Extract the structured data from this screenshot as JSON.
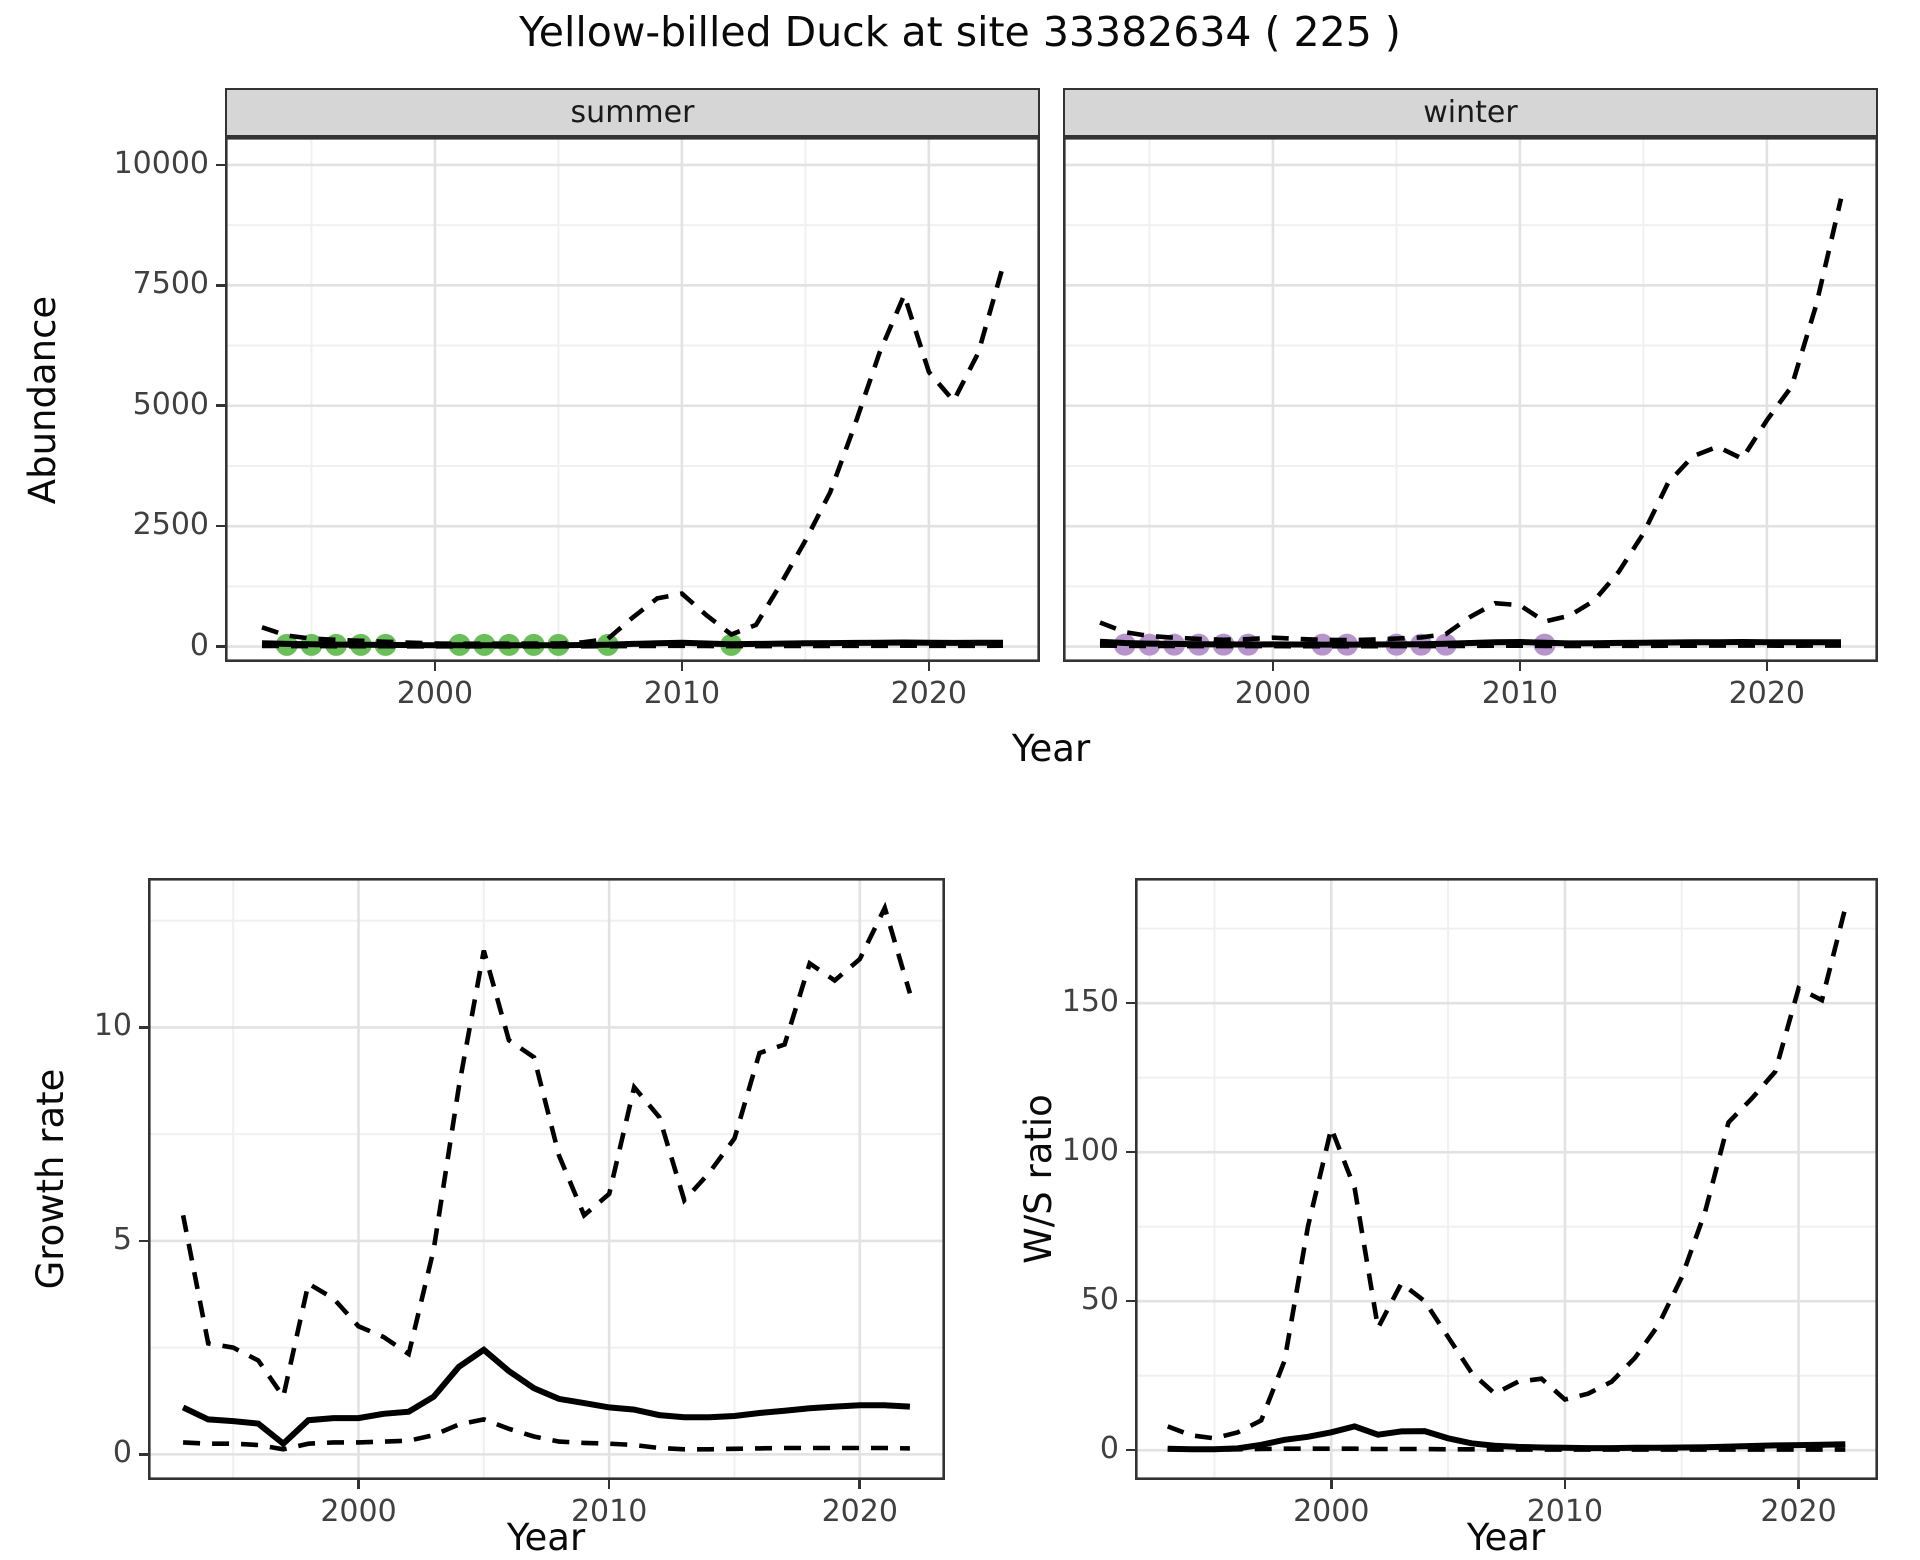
{
  "title": "Yellow-billed Duck at site 33382634 ( 225 )",
  "style": {
    "summer_point_color": "#6abf5a",
    "winter_point_color": "#b795cc",
    "line_color": "#000000",
    "strip_bg": "#d6d6d6",
    "grid_major": "#e2e2e2",
    "grid_minor": "#f0f0f0"
  },
  "abundance": {
    "ylabel": "Abundance",
    "xlabel": "Year",
    "yticks": [
      0,
      2500,
      5000,
      7500,
      10000
    ],
    "yminor": [
      1250,
      3750,
      6250,
      8750
    ],
    "xticks": [
      2000,
      2010,
      2020
    ],
    "xminor": [
      1995,
      2005,
      2015
    ],
    "years": [
      1993,
      1994,
      1995,
      1996,
      1997,
      1998,
      1999,
      2000,
      2001,
      2002,
      2003,
      2004,
      2005,
      2006,
      2007,
      2008,
      2009,
      2010,
      2011,
      2012,
      2013,
      2014,
      2015,
      2016,
      2017,
      2018,
      2019,
      2020,
      2021,
      2022,
      2023
    ],
    "facets": [
      {
        "label": "summer",
        "upper": [
          400,
          230,
          165,
          140,
          120,
          100,
          80,
          65,
          58,
          60,
          60,
          62,
          65,
          90,
          160,
          600,
          1000,
          1100,
          650,
          250,
          450,
          1300,
          2200,
          3200,
          4600,
          6100,
          7300,
          5700,
          5100,
          6100,
          7900
        ],
        "median": [
          70,
          55,
          48,
          42,
          38,
          34,
          30,
          28,
          26,
          26,
          26,
          27,
          28,
          32,
          40,
          55,
          70,
          78,
          65,
          50,
          55,
          62,
          68,
          72,
          76,
          80,
          84,
          80,
          76,
          78,
          80
        ],
        "lower": [
          15,
          12,
          10,
          9,
          8,
          8,
          7,
          7,
          6,
          6,
          6,
          6,
          7,
          7,
          9,
          12,
          15,
          16,
          13,
          10,
          11,
          13,
          14,
          15,
          16,
          17,
          18,
          17,
          16,
          17,
          18
        ],
        "points": {
          "years": [
            1994,
            1995,
            1996,
            1997,
            1998,
            2001,
            2002,
            2003,
            2004,
            2005,
            2007,
            2012
          ],
          "values": [
            35,
            35,
            35,
            35,
            35,
            35,
            35,
            35,
            35,
            35,
            35,
            35
          ]
        }
      },
      {
        "label": "winter",
        "upper": [
          500,
          300,
          220,
          185,
          160,
          140,
          155,
          185,
          160,
          140,
          135,
          145,
          165,
          190,
          260,
          620,
          900,
          860,
          520,
          640,
          950,
          1550,
          2350,
          3400,
          3950,
          4150,
          3900,
          4700,
          5400,
          7100,
          9300
        ],
        "median": [
          100,
          75,
          62,
          55,
          50,
          46,
          44,
          46,
          44,
          42,
          42,
          43,
          45,
          50,
          58,
          75,
          90,
          95,
          78,
          66,
          70,
          76,
          80,
          84,
          88,
          92,
          95,
          92,
          88,
          90,
          92
        ],
        "lower": [
          20,
          16,
          13,
          12,
          11,
          10,
          10,
          10,
          9,
          9,
          9,
          9,
          10,
          10,
          12,
          15,
          18,
          19,
          15,
          13,
          14,
          16,
          17,
          18,
          19,
          20,
          21,
          20,
          19,
          20,
          21
        ],
        "points": {
          "years": [
            1994,
            1995,
            1996,
            1997,
            1998,
            1999,
            2002,
            2003,
            2005,
            2006,
            2007,
            2011
          ],
          "values": [
            40,
            40,
            40,
            40,
            40,
            40,
            40,
            40,
            40,
            40,
            40,
            40
          ]
        }
      }
    ]
  },
  "growth": {
    "ylabel": "Growth rate",
    "xlabel": "Year",
    "yticks": [
      0,
      5,
      10
    ],
    "yminor": [
      2.5,
      7.5,
      12.5
    ],
    "xticks": [
      2000,
      2010,
      2020
    ],
    "xminor": [
      1995,
      2005,
      2015
    ],
    "years": [
      1993,
      1994,
      1995,
      1996,
      1997,
      1998,
      1999,
      2000,
      2001,
      2002,
      2003,
      2004,
      2005,
      2006,
      2007,
      2008,
      2009,
      2010,
      2011,
      2012,
      2013,
      2014,
      2015,
      2016,
      2017,
      2018,
      2019,
      2020,
      2021,
      2022
    ],
    "upper": [
      5.6,
      2.6,
      2.5,
      2.2,
      1.35,
      4.0,
      3.65,
      3.0,
      2.75,
      2.35,
      4.8,
      8.6,
      11.8,
      9.7,
      9.3,
      7.0,
      5.6,
      6.1,
      8.6,
      7.9,
      5.95,
      6.6,
      7.4,
      9.4,
      9.6,
      11.5,
      11.1,
      11.6,
      12.8,
      10.8
    ],
    "median": [
      1.1,
      0.82,
      0.78,
      0.72,
      0.25,
      0.8,
      0.85,
      0.85,
      0.95,
      1.0,
      1.35,
      2.05,
      2.45,
      1.95,
      1.55,
      1.3,
      1.2,
      1.1,
      1.05,
      0.92,
      0.87,
      0.87,
      0.9,
      0.97,
      1.02,
      1.08,
      1.12,
      1.15,
      1.15,
      1.12
    ],
    "lower": [
      0.28,
      0.25,
      0.25,
      0.22,
      0.12,
      0.25,
      0.28,
      0.28,
      0.3,
      0.32,
      0.45,
      0.7,
      0.82,
      0.6,
      0.42,
      0.3,
      0.27,
      0.25,
      0.22,
      0.15,
      0.12,
      0.12,
      0.13,
      0.14,
      0.15,
      0.15,
      0.15,
      0.15,
      0.15,
      0.14
    ]
  },
  "ws": {
    "ylabel": "W/S ratio",
    "xlabel": "Year",
    "yticks": [
      0,
      50,
      100,
      150
    ],
    "yminor": [
      25,
      75,
      125,
      175
    ],
    "xticks": [
      2000,
      2010,
      2020
    ],
    "xminor": [
      1995,
      2005,
      2015
    ],
    "years": [
      1993,
      1994,
      1995,
      1996,
      1997,
      1998,
      1999,
      2000,
      2001,
      2002,
      2003,
      2004,
      2005,
      2006,
      2007,
      2008,
      2009,
      2010,
      2011,
      2012,
      2013,
      2014,
      2015,
      2016,
      2017,
      2018,
      2019,
      2020,
      2021,
      2022
    ],
    "upper": [
      8,
      5,
      4,
      6,
      10,
      30,
      75,
      108,
      88,
      41,
      56,
      50,
      38,
      26,
      19,
      23,
      24,
      17,
      19,
      23,
      31,
      42,
      58,
      80,
      110,
      118,
      127,
      155,
      151,
      182
    ],
    "median": [
      0.5,
      0.3,
      0.3,
      0.6,
      1.8,
      3.5,
      4.5,
      6.0,
      8.0,
      5.2,
      6.3,
      6.4,
      4.0,
      2.3,
      1.5,
      1.1,
      0.9,
      0.8,
      0.7,
      0.7,
      0.8,
      0.8,
      0.9,
      1.0,
      1.2,
      1.4,
      1.6,
      1.7,
      1.8,
      2.0
    ],
    "lower": [
      0.3,
      0.2,
      0.2,
      0.3,
      0.4,
      0.5,
      0.5,
      0.5,
      0.5,
      0.4,
      0.4,
      0.4,
      0.3,
      0.3,
      0.2,
      0.2,
      0.2,
      0.2,
      0.2,
      0.2,
      0.2,
      0.2,
      0.2,
      0.2,
      0.2,
      0.2,
      0.2,
      0.2,
      0.2,
      0.2
    ],
    "chart_note": ""
  },
  "chart_data": [
    {
      "type": "line",
      "title": "Abundance by season (dashed = credible interval bounds, solid = median, dots = observations)",
      "facets": [
        "summer",
        "winter"
      ],
      "xlabel": "Year",
      "ylabel": "Abundance",
      "xlim": [
        1991.5,
        2024.5
      ],
      "ylim": [
        0,
        10000
      ],
      "x": [
        1993,
        1994,
        1995,
        1996,
        1997,
        1998,
        1999,
        2000,
        2001,
        2002,
        2003,
        2004,
        2005,
        2006,
        2007,
        2008,
        2009,
        2010,
        2011,
        2012,
        2013,
        2014,
        2015,
        2016,
        2017,
        2018,
        2019,
        2020,
        2021,
        2022,
        2023
      ],
      "series": [
        {
          "name": "summer upper CI",
          "values": [
            400,
            230,
            165,
            140,
            120,
            100,
            80,
            65,
            58,
            60,
            60,
            62,
            65,
            90,
            160,
            600,
            1000,
            1100,
            650,
            250,
            450,
            1300,
            2200,
            3200,
            4600,
            6100,
            7300,
            5700,
            5100,
            6100,
            7900
          ]
        },
        {
          "name": "summer median",
          "values": [
            70,
            55,
            48,
            42,
            38,
            34,
            30,
            28,
            26,
            26,
            26,
            27,
            28,
            32,
            40,
            55,
            70,
            78,
            65,
            50,
            55,
            62,
            68,
            72,
            76,
            80,
            84,
            80,
            76,
            78,
            80
          ]
        },
        {
          "name": "winter upper CI",
          "values": [
            500,
            300,
            220,
            185,
            160,
            140,
            155,
            185,
            160,
            140,
            135,
            145,
            165,
            190,
            260,
            620,
            900,
            860,
            520,
            640,
            950,
            1550,
            2350,
            3400,
            3950,
            4150,
            3900,
            4700,
            5400,
            7100,
            9300
          ]
        },
        {
          "name": "winter median",
          "values": [
            100,
            75,
            62,
            55,
            50,
            46,
            44,
            46,
            44,
            42,
            42,
            43,
            45,
            50,
            58,
            75,
            90,
            95,
            78,
            66,
            70,
            76,
            80,
            84,
            88,
            92,
            95,
            92,
            88,
            90,
            92
          ]
        }
      ],
      "point_years_summer": [
        1994,
        1995,
        1996,
        1997,
        1998,
        2001,
        2002,
        2003,
        2004,
        2005,
        2007,
        2012
      ],
      "point_years_winter": [
        1994,
        1995,
        1996,
        1997,
        1998,
        1999,
        2002,
        2003,
        2005,
        2006,
        2007,
        2011
      ]
    },
    {
      "type": "line",
      "title": "Growth rate",
      "xlabel": "Year",
      "ylabel": "Growth rate",
      "ylim": [
        0,
        13
      ],
      "x": [
        1993,
        1994,
        1995,
        1996,
        1997,
        1998,
        1999,
        2000,
        2001,
        2002,
        2003,
        2004,
        2005,
        2006,
        2007,
        2008,
        2009,
        2010,
        2011,
        2012,
        2013,
        2014,
        2015,
        2016,
        2017,
        2018,
        2019,
        2020,
        2021,
        2022
      ],
      "series": [
        {
          "name": "upper CI",
          "values": [
            5.6,
            2.6,
            2.5,
            2.2,
            1.35,
            4.0,
            3.65,
            3.0,
            2.75,
            2.35,
            4.8,
            8.6,
            11.8,
            9.7,
            9.3,
            7.0,
            5.6,
            6.1,
            8.6,
            7.9,
            5.95,
            6.6,
            7.4,
            9.4,
            9.6,
            11.5,
            11.1,
            11.6,
            12.8,
            10.8
          ]
        },
        {
          "name": "median",
          "values": [
            1.1,
            0.82,
            0.78,
            0.72,
            0.25,
            0.8,
            0.85,
            0.85,
            0.95,
            1.0,
            1.35,
            2.05,
            2.45,
            1.95,
            1.55,
            1.3,
            1.2,
            1.1,
            1.05,
            0.92,
            0.87,
            0.87,
            0.9,
            0.97,
            1.02,
            1.08,
            1.12,
            1.15,
            1.15,
            1.12
          ]
        },
        {
          "name": "lower CI",
          "values": [
            0.28,
            0.25,
            0.25,
            0.22,
            0.12,
            0.25,
            0.28,
            0.28,
            0.3,
            0.32,
            0.45,
            0.7,
            0.82,
            0.6,
            0.42,
            0.3,
            0.27,
            0.25,
            0.22,
            0.15,
            0.12,
            0.12,
            0.13,
            0.14,
            0.15,
            0.15,
            0.15,
            0.15,
            0.15,
            0.14
          ]
        }
      ]
    },
    {
      "type": "line",
      "title": "W/S ratio",
      "xlabel": "Year",
      "ylabel": "W/S ratio",
      "ylim": [
        0,
        190
      ],
      "x": [
        1993,
        1994,
        1995,
        1996,
        1997,
        1998,
        1999,
        2000,
        2001,
        2002,
        2003,
        2004,
        2005,
        2006,
        2007,
        2008,
        2009,
        2010,
        2011,
        2012,
        2013,
        2014,
        2015,
        2016,
        2017,
        2018,
        2019,
        2020,
        2021,
        2022
      ],
      "series": [
        {
          "name": "upper CI",
          "values": [
            8,
            5,
            4,
            6,
            10,
            30,
            75,
            108,
            88,
            41,
            56,
            50,
            38,
            26,
            19,
            23,
            24,
            17,
            19,
            23,
            31,
            42,
            58,
            80,
            110,
            118,
            127,
            155,
            151,
            182
          ]
        },
        {
          "name": "median",
          "values": [
            0.5,
            0.3,
            0.3,
            0.6,
            1.8,
            3.5,
            4.5,
            6.0,
            8.0,
            5.2,
            6.3,
            6.4,
            4.0,
            2.3,
            1.5,
            1.1,
            0.9,
            0.8,
            0.7,
            0.7,
            0.8,
            0.8,
            0.9,
            1.0,
            1.2,
            1.4,
            1.6,
            1.7,
            1.8,
            2.0
          ]
        },
        {
          "name": "lower CI",
          "values": [
            0.3,
            0.2,
            0.2,
            0.3,
            0.4,
            0.5,
            0.5,
            0.5,
            0.5,
            0.4,
            0.4,
            0.4,
            0.3,
            0.3,
            0.2,
            0.2,
            0.2,
            0.2,
            0.2,
            0.2,
            0.2,
            0.2,
            0.2,
            0.2,
            0.2,
            0.2,
            0.2,
            0.2,
            0.2,
            0.2
          ]
        }
      ]
    }
  ]
}
